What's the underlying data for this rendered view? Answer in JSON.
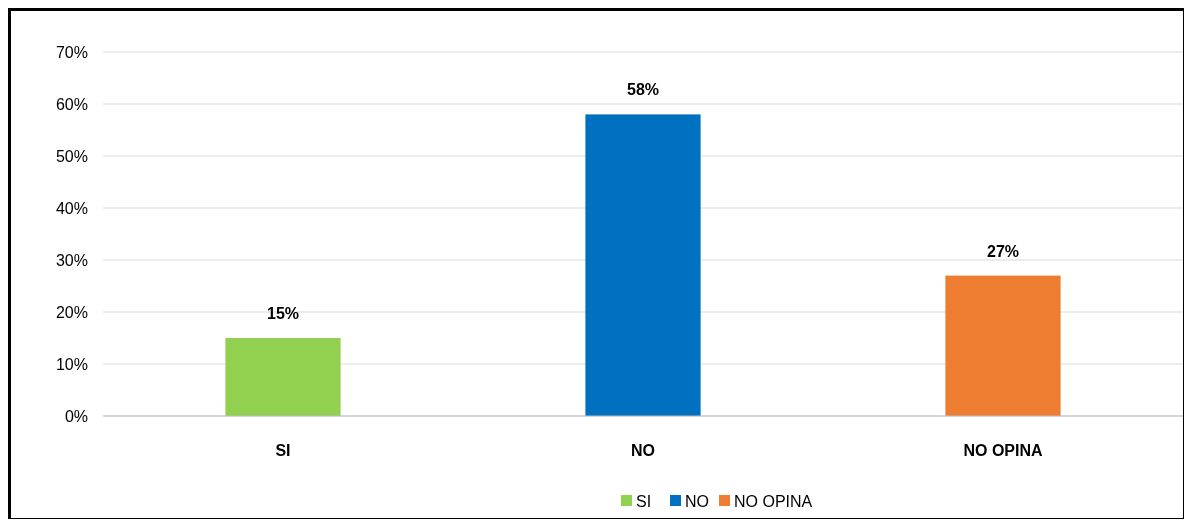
{
  "chart_data": {
    "type": "bar",
    "categories": [
      "SI",
      "NO",
      "NO OPINA"
    ],
    "series": [
      {
        "name": "SI",
        "color": "#92d050",
        "values": [
          15,
          null,
          null
        ],
        "value_labels": [
          "15%",
          null,
          null
        ]
      },
      {
        "name": "NO",
        "color": "#0070c0",
        "values": [
          null,
          58,
          null
        ],
        "value_labels": [
          null,
          "58%",
          null
        ]
      },
      {
        "name": "NO OPINA",
        "color": "#ed7d31",
        "values": [
          null,
          null,
          27
        ],
        "value_labels": [
          null,
          null,
          "27%"
        ]
      }
    ],
    "ylim": [
      0,
      70
    ],
    "yticks": [
      {
        "value": 0,
        "label": "0%"
      },
      {
        "value": 10,
        "label": "10%"
      },
      {
        "value": 20,
        "label": "20%"
      },
      {
        "value": 30,
        "label": "30%"
      },
      {
        "value": 40,
        "label": "40%"
      },
      {
        "value": 50,
        "label": "50%"
      },
      {
        "value": 60,
        "label": "60%"
      },
      {
        "value": 70,
        "label": "70%"
      }
    ],
    "grid": "y",
    "legend": "bottom"
  }
}
